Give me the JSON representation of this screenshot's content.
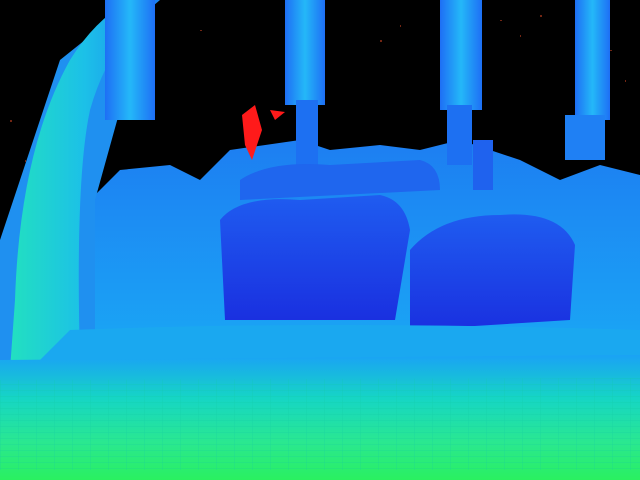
{
  "image": {
    "kind": "false-color depth map",
    "palette": {
      "void": "#000000",
      "far": "#1a2fe0",
      "mid": "#1aa2f5",
      "near": "#16d6c4",
      "nearest": "#2af060",
      "outlier": "#ff1a1a"
    },
    "regions": [
      "far-background-void",
      "left-vertical-post",
      "vertical-pipes",
      "machinery-block-left",
      "machinery-block-right",
      "conveyor-platform",
      "floor-foreground",
      "outlier-pixels"
    ]
  }
}
